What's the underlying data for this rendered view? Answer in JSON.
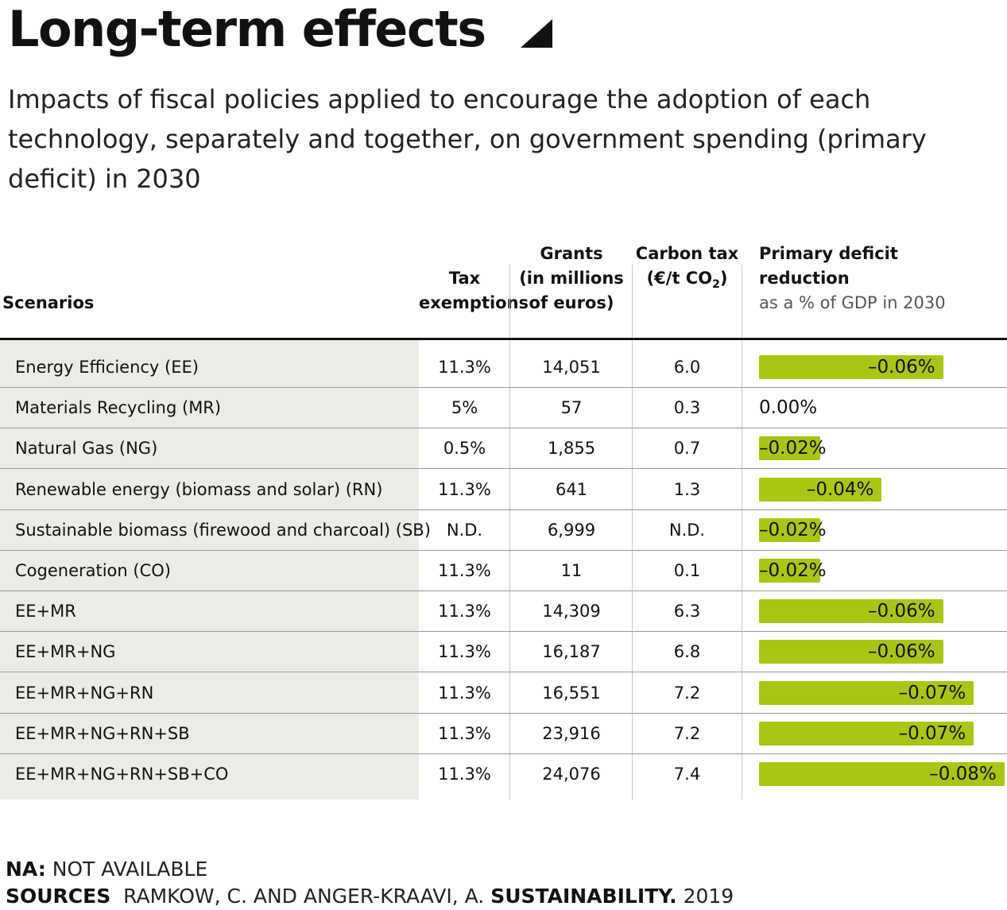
{
  "title": "Long-term effects",
  "subtitle": "Impacts of fiscal policies applied to encourage the adoption of each technology, separately and together, on government spending (primary deficit) in 2030",
  "headers": {
    "scenarios": "Scenarios",
    "tax_line1": "Tax",
    "tax_line2": "exemptions",
    "grants_line1": "Grants",
    "grants_line2": "(in millions",
    "grants_line3": "of euros)",
    "carbon_line1": "Carbon tax",
    "carbon_line2": "(€/t CO",
    "carbon_sub": "2",
    "carbon_line2_end": ")",
    "deficit_line1": "Primary deficit",
    "deficit_line2": "reduction",
    "deficit_note": "as a % of GDP in 2030"
  },
  "chart_data": {
    "type": "table",
    "columns": [
      "Scenarios",
      "Tax exemptions",
      "Grants (in millions of euros)",
      "Carbon tax (€/t CO2)",
      "Primary deficit reduction as a % of GDP in 2030"
    ],
    "rows": [
      {
        "scenario": "Energy Efficiency (EE)",
        "tax": "11.3%",
        "grants": "14,051",
        "carbon": "6.0",
        "deficit": -0.06,
        "deficit_label": "–0.06%"
      },
      {
        "scenario": "Materials Recycling (MR)",
        "tax": "5%",
        "grants": "57",
        "carbon": "0.3",
        "deficit": 0.0,
        "deficit_label": "0.00%"
      },
      {
        "scenario": "Natural Gas (NG)",
        "tax": "0.5%",
        "grants": "1,855",
        "carbon": "0.7",
        "deficit": -0.02,
        "deficit_label": "–0.02%"
      },
      {
        "scenario": "Renewable energy (biomass and solar) (RN)",
        "tax": "11.3%",
        "grants": "641",
        "carbon": "1.3",
        "deficit": -0.04,
        "deficit_label": "–0.04%"
      },
      {
        "scenario": "Sustainable biomass (firewood and charcoal) (SB)",
        "tax": "N.D.",
        "grants": "6,999",
        "carbon": "N.D.",
        "deficit": -0.02,
        "deficit_label": "–0.02%"
      },
      {
        "scenario": "Cogeneration (CO)",
        "tax": "11.3%",
        "grants": "11",
        "carbon": "0.1",
        "deficit": -0.02,
        "deficit_label": "–0.02%"
      },
      {
        "scenario": "EE+MR",
        "tax": "11.3%",
        "grants": "14,309",
        "carbon": "6.3",
        "deficit": -0.06,
        "deficit_label": "–0.06%"
      },
      {
        "scenario": "EE+MR+NG",
        "tax": "11.3%",
        "grants": "16,187",
        "carbon": "6.8",
        "deficit": -0.06,
        "deficit_label": "–0.06%"
      },
      {
        "scenario": "EE+MR+NG+RN",
        "tax": "11.3%",
        "grants": "16,551",
        "carbon": "7.2",
        "deficit": -0.07,
        "deficit_label": "–0.07%"
      },
      {
        "scenario": "EE+MR+NG+RN+SB",
        "tax": "11.3%",
        "grants": "23,916",
        "carbon": "7.2",
        "deficit": -0.07,
        "deficit_label": "–0.07%"
      },
      {
        "scenario": "EE+MR+NG+RN+SB+CO",
        "tax": "11.3%",
        "grants": "24,076",
        "carbon": "7.4",
        "deficit": -0.08,
        "deficit_label": "–0.08%"
      }
    ],
    "bar_color": "#a8c614",
    "band_color": "#ecebe6"
  },
  "footer": {
    "na_key": "NA:",
    "na_value": "NOT AVAILABLE",
    "sources_key": "SOURCES",
    "sources_authors": "RAMKOW, C. AND ANGER-KRAAVI, A.",
    "sources_journal": "SUSTAINABILITY.",
    "sources_year": "2019"
  }
}
